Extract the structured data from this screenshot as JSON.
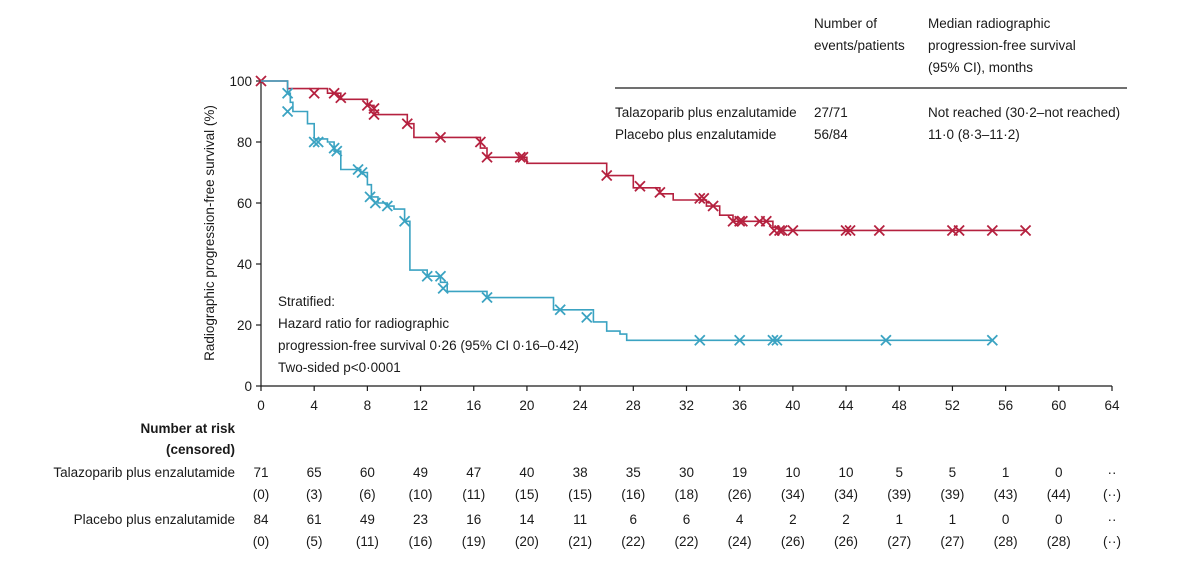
{
  "chart_data": {
    "type": "line",
    "ylabel": "Radiographic progression-free survival (%)",
    "xlabel": "",
    "xlim": [
      0,
      64
    ],
    "ylim": [
      0,
      100
    ],
    "x_ticks": [
      0,
      4,
      8,
      12,
      16,
      20,
      24,
      28,
      32,
      36,
      40,
      44,
      48,
      52,
      56,
      60,
      64
    ],
    "y_ticks": [
      0,
      20,
      40,
      60,
      80,
      100
    ],
    "grid": false,
    "colors": {
      "talazoparib": "#b5213f",
      "placebo": "#3ba3c2"
    },
    "series": [
      {
        "name": "Talazoparib plus enzalutamide",
        "key": "talazoparib",
        "steps": [
          [
            0,
            100
          ],
          [
            2,
            97.5
          ],
          [
            5,
            96
          ],
          [
            6,
            94
          ],
          [
            8,
            92
          ],
          [
            8.5,
            89
          ],
          [
            11,
            86
          ],
          [
            11.5,
            81.5
          ],
          [
            13.5,
            81.5
          ],
          [
            16.5,
            78
          ],
          [
            17,
            75
          ],
          [
            19.5,
            75
          ],
          [
            20,
            73
          ],
          [
            24,
            73
          ],
          [
            26,
            69
          ],
          [
            28,
            65
          ],
          [
            30,
            63
          ],
          [
            31,
            61
          ],
          [
            33,
            61
          ],
          [
            33.5,
            59
          ],
          [
            34.5,
            56
          ],
          [
            35.5,
            54
          ],
          [
            38.5,
            52
          ],
          [
            39,
            51
          ],
          [
            57.5,
            51
          ]
        ],
        "censored": [
          [
            0,
            100
          ],
          [
            4,
            96
          ],
          [
            5.5,
            96
          ],
          [
            6,
            94.5
          ],
          [
            8,
            92
          ],
          [
            8.5,
            91
          ],
          [
            8.5,
            89
          ],
          [
            11,
            86
          ],
          [
            13.5,
            81.5
          ],
          [
            16.5,
            80
          ],
          [
            17,
            75
          ],
          [
            19.5,
            75
          ],
          [
            19.7,
            75
          ],
          [
            26,
            69
          ],
          [
            28.5,
            65.5
          ],
          [
            30,
            63.5
          ],
          [
            33,
            61.5
          ],
          [
            33.3,
            61.5
          ],
          [
            34,
            59
          ],
          [
            35.5,
            54
          ],
          [
            36,
            54
          ],
          [
            36.2,
            54
          ],
          [
            37.5,
            54
          ],
          [
            38,
            54
          ],
          [
            38.6,
            51
          ],
          [
            39,
            51
          ],
          [
            39.2,
            51
          ],
          [
            40,
            51
          ],
          [
            44,
            51
          ],
          [
            44.3,
            51
          ],
          [
            46.5,
            51
          ],
          [
            52,
            51
          ],
          [
            52.5,
            51
          ],
          [
            55,
            51
          ],
          [
            57.5,
            51
          ]
        ]
      },
      {
        "name": "Placebo plus enzalutamide",
        "key": "placebo",
        "steps": [
          [
            0,
            100
          ],
          [
            2,
            96
          ],
          [
            2.2,
            93
          ],
          [
            2.4,
            90
          ],
          [
            3.5,
            86
          ],
          [
            4,
            81
          ],
          [
            5,
            80
          ],
          [
            5.5,
            77
          ],
          [
            6,
            71
          ],
          [
            7,
            71
          ],
          [
            7.5,
            70
          ],
          [
            8,
            66
          ],
          [
            8.3,
            62
          ],
          [
            8.8,
            60
          ],
          [
            9.5,
            59
          ],
          [
            10,
            58
          ],
          [
            10.8,
            54
          ],
          [
            11.2,
            38
          ],
          [
            12.5,
            36
          ],
          [
            13.5,
            34
          ],
          [
            14,
            31
          ],
          [
            17,
            29
          ],
          [
            21,
            29
          ],
          [
            22,
            25
          ],
          [
            24,
            25
          ],
          [
            25,
            21
          ],
          [
            26,
            18
          ],
          [
            27,
            17
          ],
          [
            27.5,
            15
          ],
          [
            55,
            15
          ]
        ],
        "censored": [
          [
            2,
            96
          ],
          [
            2,
            90
          ],
          [
            4,
            80
          ],
          [
            4.3,
            80
          ],
          [
            5.5,
            78
          ],
          [
            5.7,
            77
          ],
          [
            7.3,
            71
          ],
          [
            7.6,
            70
          ],
          [
            8.2,
            62
          ],
          [
            8.6,
            60
          ],
          [
            9.5,
            59
          ],
          [
            10.8,
            54
          ],
          [
            12.5,
            36
          ],
          [
            13.5,
            36
          ],
          [
            13.7,
            32
          ],
          [
            17,
            29
          ],
          [
            22.5,
            25
          ],
          [
            24.5,
            22.5
          ],
          [
            33,
            15
          ],
          [
            36,
            15
          ],
          [
            38.5,
            15
          ],
          [
            38.8,
            15
          ],
          [
            47,
            15
          ],
          [
            55,
            15
          ]
        ]
      }
    ]
  },
  "legend_table": {
    "col_events": [
      "Number of",
      "events/patients"
    ],
    "col_median": [
      "Median radiographic",
      "progression-free survival",
      "(95% CI), months"
    ],
    "rows": [
      {
        "label": "Talazoparib plus enzalutamide",
        "events": "27/71",
        "median": "Not reached (30·2–not reached)"
      },
      {
        "label": "Placebo plus enzalutamide",
        "events": "56/84",
        "median": "11·0 (8·3–11·2)"
      }
    ]
  },
  "annotation": [
    "Stratified:",
    "Hazard ratio for radiographic",
    "progression-free survival 0·26 (95% CI 0·16–0·42)",
    "Two-sided p<0·0001"
  ],
  "risk_table": {
    "header": [
      "Number at risk",
      "(censored)"
    ],
    "rows": [
      {
        "label": "Talazoparib plus enzalutamide",
        "at_risk": [
          "71",
          "65",
          "60",
          "49",
          "47",
          "40",
          "38",
          "35",
          "30",
          "19",
          "10",
          "10",
          "5",
          "5",
          "1",
          "0",
          "··"
        ],
        "censored": [
          "(0)",
          "(3)",
          "(6)",
          "(10)",
          "(11)",
          "(15)",
          "(15)",
          "(16)",
          "(18)",
          "(26)",
          "(34)",
          "(34)",
          "(39)",
          "(39)",
          "(43)",
          "(44)",
          "(··)"
        ]
      },
      {
        "label": "Placebo plus enzalutamide",
        "at_risk": [
          "84",
          "61",
          "49",
          "23",
          "16",
          "14",
          "11",
          "6",
          "6",
          "4",
          "2",
          "2",
          "1",
          "1",
          "0",
          "0",
          "··"
        ],
        "censored": [
          "(0)",
          "(5)",
          "(11)",
          "(16)",
          "(19)",
          "(20)",
          "(21)",
          "(22)",
          "(22)",
          "(24)",
          "(26)",
          "(26)",
          "(27)",
          "(27)",
          "(28)",
          "(28)",
          "(··)"
        ]
      }
    ]
  }
}
